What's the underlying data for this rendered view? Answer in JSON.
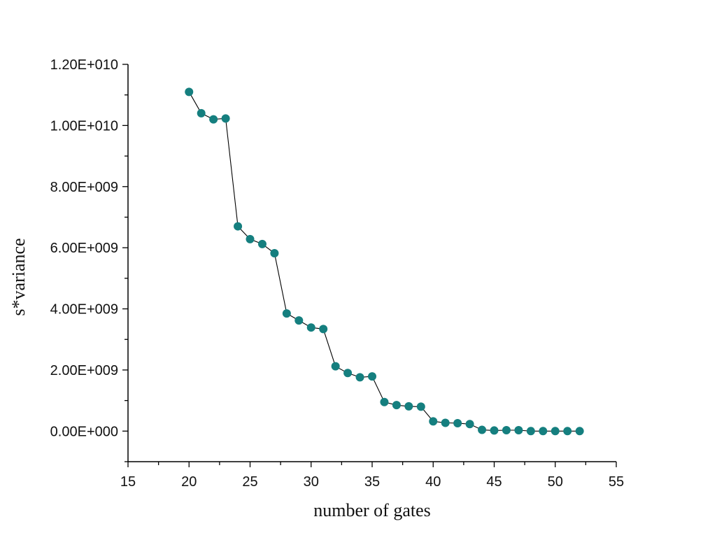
{
  "chart_data": {
    "type": "line",
    "title": "",
    "xlabel": "number of gates",
    "ylabel": "s*variance",
    "xlim": [
      15,
      55
    ],
    "ylim": [
      -1000000000,
      12000000000
    ],
    "x_ticks": [
      15,
      20,
      25,
      30,
      35,
      40,
      45,
      50,
      55
    ],
    "x_tick_labels": [
      "15",
      "20",
      "25",
      "30",
      "35",
      "40",
      "45",
      "50",
      "55"
    ],
    "y_ticks": [
      0,
      2000000000,
      4000000000,
      6000000000,
      8000000000,
      10000000000,
      12000000000
    ],
    "y_tick_labels": [
      "0.00E+000",
      "2.00E+009",
      "4.00E+009",
      "6.00E+009",
      "8.00E+009",
      "1.00E+010",
      "1.20E+010"
    ],
    "grid": false,
    "marker_color": "#157f7f",
    "line_color": "#000000",
    "series": [
      {
        "x": [
          20,
          21,
          22,
          23,
          24,
          25,
          26,
          27,
          28,
          29,
          30,
          31,
          32,
          33,
          34,
          35,
          36,
          37,
          38,
          39,
          40,
          41,
          42,
          43,
          44,
          45,
          46,
          47,
          48,
          49,
          50,
          51,
          52
        ],
        "values": [
          11100000000,
          10400000000,
          10200000000,
          10230000000,
          6700000000,
          6280000000,
          6120000000,
          5820000000,
          3850000000,
          3620000000,
          3390000000,
          3340000000,
          2120000000,
          1900000000,
          1760000000,
          1790000000,
          950000000,
          850000000,
          810000000,
          800000000,
          320000000,
          270000000,
          260000000,
          230000000,
          40000000,
          20000000,
          30000000,
          30000000,
          0,
          0,
          0,
          0,
          0
        ]
      }
    ]
  }
}
